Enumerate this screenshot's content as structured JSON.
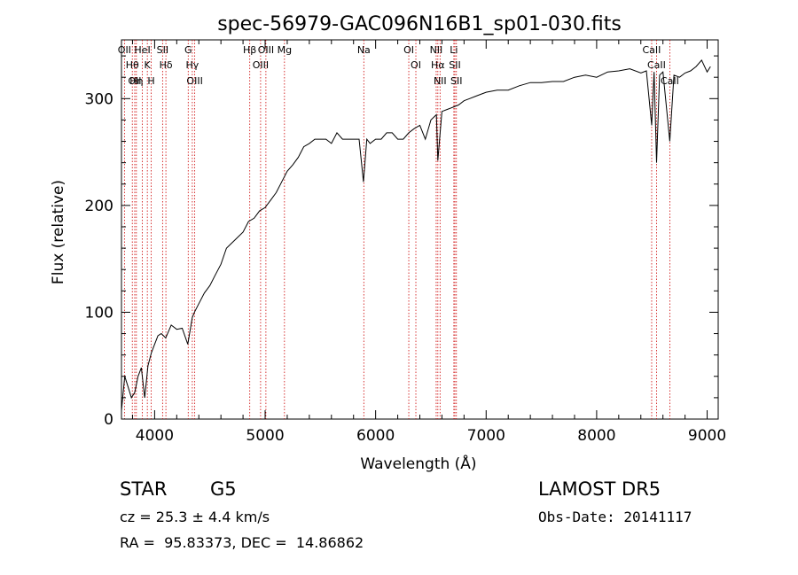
{
  "chart_data": {
    "type": "line",
    "title": "spec-56979-GAC096N16B1_sp01-030.fits",
    "xlabel": "Wavelength (Å)",
    "ylabel": "Flux (relative)",
    "xlim": [
      3700,
      9100
    ],
    "ylim": [
      0,
      355
    ],
    "xticks": [
      4000,
      5000,
      6000,
      7000,
      8000,
      9000
    ],
    "yticks": [
      0,
      100,
      200,
      300
    ],
    "grid": false,
    "series": [
      {
        "x": [
          3700,
          3730,
          3760,
          3790,
          3820,
          3850,
          3880,
          3910,
          3940,
          3970,
          4000,
          4030,
          4060,
          4100,
          4150,
          4200,
          4250,
          4300,
          4340,
          4360,
          4400,
          4450,
          4500,
          4550,
          4600,
          4650,
          4700,
          4750,
          4800,
          4850,
          4900,
          4950,
          5000,
          5050,
          5100,
          5150,
          5200,
          5250,
          5300,
          5350,
          5400,
          5450,
          5500,
          5550,
          5600,
          5650,
          5700,
          5750,
          5800,
          5850,
          5890,
          5920,
          5950,
          6000,
          6050,
          6100,
          6150,
          6200,
          6250,
          6300,
          6350,
          6400,
          6450,
          6500,
          6550,
          6563,
          6600,
          6650,
          6700,
          6750,
          6800,
          6850,
          6900,
          6950,
          7000,
          7100,
          7200,
          7300,
          7400,
          7500,
          7600,
          7700,
          7800,
          7900,
          8000,
          8100,
          8200,
          8300,
          8400,
          8450,
          8498,
          8520,
          8542,
          8570,
          8600,
          8662,
          8700,
          8750,
          8800,
          8850,
          8900,
          8950,
          9000,
          9030
        ],
        "values": [
          8,
          40,
          30,
          20,
          25,
          40,
          48,
          20,
          50,
          62,
          70,
          78,
          80,
          76,
          88,
          84,
          85,
          70,
          95,
          100,
          108,
          118,
          125,
          135,
          145,
          160,
          165,
          170,
          175,
          185,
          188,
          195,
          198,
          205,
          212,
          222,
          232,
          238,
          245,
          255,
          258,
          262,
          262,
          262,
          258,
          268,
          262,
          262,
          262,
          262,
          222,
          262,
          258,
          262,
          262,
          268,
          268,
          262,
          262,
          268,
          272,
          275,
          262,
          280,
          285,
          242,
          288,
          290,
          292,
          294,
          298,
          300,
          302,
          304,
          306,
          308,
          308,
          312,
          315,
          315,
          316,
          316,
          320,
          322,
          320,
          325,
          326,
          328,
          324,
          326,
          275,
          325,
          240,
          322,
          325,
          260,
          322,
          320,
          324,
          326,
          330,
          336,
          325,
          330
        ]
      }
    ],
    "lines": [
      {
        "x": 3727,
        "label": "OII"
      },
      {
        "x": 3798,
        "label": "Hθ"
      },
      {
        "x": 3820,
        "label": "OII"
      },
      {
        "x": 3835,
        "label": "Hη"
      },
      {
        "x": 3889,
        "label": "HeI"
      },
      {
        "x": 3934,
        "label": "K"
      },
      {
        "x": 3969,
        "label": "H"
      },
      {
        "x": 4072,
        "label": "SII"
      },
      {
        "x": 4102,
        "label": "Hδ"
      },
      {
        "x": 4304,
        "label": "G"
      },
      {
        "x": 4341,
        "label": "Hγ"
      },
      {
        "x": 4363,
        "label": "OIII"
      },
      {
        "x": 4861,
        "label": "Hβ"
      },
      {
        "x": 4959,
        "label": "OIII"
      },
      {
        "x": 5007,
        "label": "OIII"
      },
      {
        "x": 5175,
        "label": "Mg"
      },
      {
        "x": 5893,
        "label": "Na"
      },
      {
        "x": 6300,
        "label": "OI"
      },
      {
        "x": 6364,
        "label": "OI"
      },
      {
        "x": 6548,
        "label": "NII"
      },
      {
        "x": 6563,
        "label": "Hα"
      },
      {
        "x": 6583,
        "label": "NII"
      },
      {
        "x": 6708,
        "label": "Li"
      },
      {
        "x": 6717,
        "label": "SII"
      },
      {
        "x": 6731,
        "label": "SII"
      },
      {
        "x": 8498,
        "label": "CaII"
      },
      {
        "x": 8542,
        "label": "CaII"
      },
      {
        "x": 8662,
        "label": "CaII"
      }
    ]
  },
  "info": {
    "object_class": "STAR",
    "subclass": "G5",
    "survey": "LAMOST DR5",
    "cz": "cz = 25.3 ± 4.4 km/s",
    "obs_date": "Obs-Date: 20141117",
    "coords": "RA =  95.83373, DEC =  14.86862"
  }
}
